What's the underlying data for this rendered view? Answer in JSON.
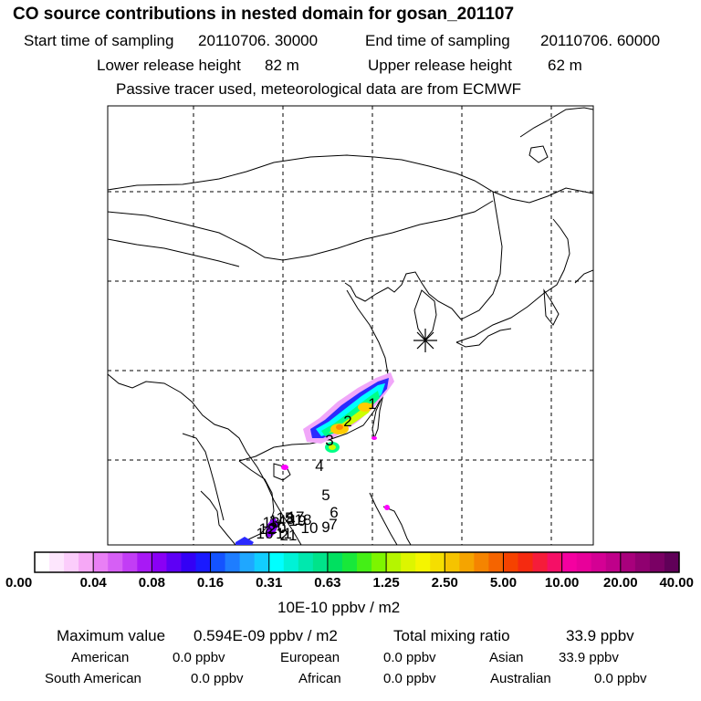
{
  "header": {
    "title": "CO  source contributions in nested domain for gosan_201107",
    "start_label": "Start time of sampling",
    "start_value": "20110706. 30000",
    "end_label": "End time of sampling",
    "end_value": "20110706. 60000",
    "lower_label": "Lower release height",
    "lower_value": "82 m",
    "upper_label": "Upper release height",
    "upper_value": "62 m",
    "note": "Passive tracer used, meteorological data are from ECMWF"
  },
  "map": {
    "receptor_icon": "asterisk-icon",
    "trajectory_labels": [
      "1",
      "2",
      "3",
      "4",
      "5",
      "6",
      "7",
      "8",
      "9",
      "10",
      "11",
      "12",
      "13",
      "14",
      "15",
      "16",
      "17",
      "18",
      "19",
      "20",
      "21"
    ],
    "plume_colors": [
      "#ff00ff",
      "#8800ff",
      "#2a2aff",
      "#00ffff",
      "#00ff88",
      "#ccff00",
      "#ffcc00",
      "#ff8800",
      "#ff2200"
    ]
  },
  "colorbar": {
    "ticks": [
      "0.00",
      "0.04",
      "0.08",
      "0.16",
      "0.31",
      "0.63",
      "1.25",
      "2.50",
      "5.00",
      "10.00",
      "20.00",
      "40.00"
    ],
    "colors": [
      "#ffffff",
      "#fde6fd",
      "#fbcdfb",
      "#f6a8f6",
      "#e97ff5",
      "#d65ff5",
      "#c23df5",
      "#a819f5",
      "#8a00f5",
      "#5e00f5",
      "#3300f5",
      "#1a1aff",
      "#1453ff",
      "#1e7dff",
      "#1fa7ff",
      "#12cdff",
      "#00ffff",
      "#00f2d6",
      "#00e8ae",
      "#00e38a",
      "#00e060",
      "#18e83a",
      "#44ef16",
      "#7df500",
      "#b5f500",
      "#ddf500",
      "#f5f500",
      "#f5de00",
      "#f5c300",
      "#f5a400",
      "#f58400",
      "#f56400",
      "#f54200",
      "#f52a10",
      "#f51c3a",
      "#f50f66",
      "#f500a0",
      "#e8009a",
      "#d40094",
      "#bf008a",
      "#a8007c",
      "#900070",
      "#7a0064",
      "#600058"
    ],
    "units": "10E-10 ppbv / m2"
  },
  "stats": {
    "max_label": "Maximum value",
    "max_value": "0.594E-09 ppbv / m2",
    "total_label": "Total mixing ratio",
    "total_value": "33.9 ppbv"
  },
  "regions": [
    {
      "name": "American",
      "value": "0.0 ppbv"
    },
    {
      "name": "European",
      "value": "0.0 ppbv"
    },
    {
      "name": "Asian",
      "value": "33.9 ppbv"
    },
    {
      "name": "South American",
      "value": "0.0 ppbv"
    },
    {
      "name": "African",
      "value": "0.0 ppbv"
    },
    {
      "name": "Australian",
      "value": "0.0 ppbv"
    }
  ]
}
